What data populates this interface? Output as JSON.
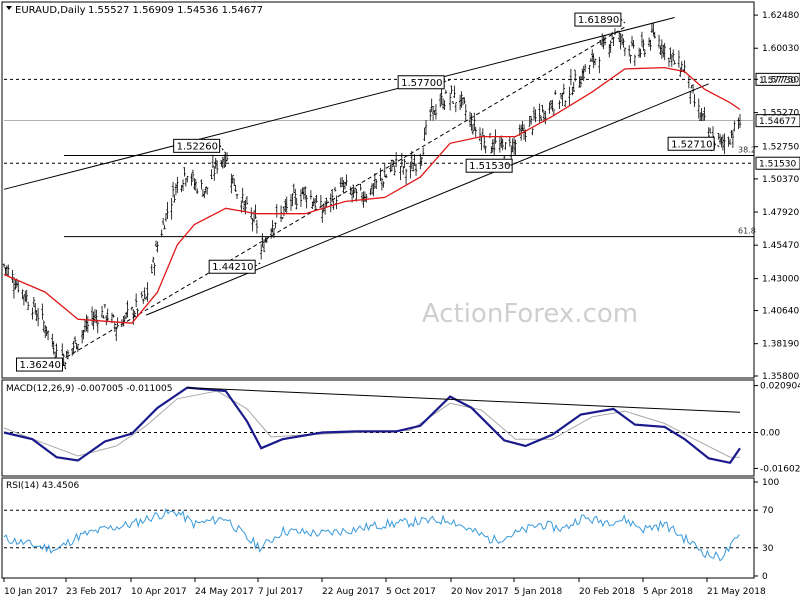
{
  "header": {
    "symbol_label": "EURAUD,Daily",
    "ohlc_label": "1.55527 1.56909 1.54536 1.54677"
  },
  "watermark": "ActionForex.com",
  "chart_data": {
    "type": "candlestick",
    "symbol": "EURAUD",
    "timeframe": "Daily",
    "last_close": 1.54677,
    "price_axis": {
      "ylim": [
        1.358,
        1.633
      ],
      "ticks": [
        "1.62480",
        "1.60030",
        "1.57730",
        "1.55270",
        "1.52750",
        "1.50370",
        "1.47920",
        "1.45470",
        "1.43000",
        "1.40640",
        "1.38190",
        "1.35800"
      ]
    },
    "date_axis": {
      "labels": [
        "10 Jan 2017",
        "23 Feb 2017",
        "10 Apr 2017",
        "24 May 2017",
        "7 Jul 2017",
        "22 Aug 2017",
        "5 Oct 2017",
        "20 Nov 2017",
        "5 Jan 2018",
        "20 Feb 2018",
        "5 Apr 2018",
        "21 May 2018"
      ]
    },
    "close_path": [
      [
        "2017-01-10",
        1.44
      ],
      [
        "2017-01-20",
        1.425
      ],
      [
        "2017-01-30",
        1.41
      ],
      [
        "2017-02-08",
        1.395
      ],
      [
        "2017-02-16",
        1.375
      ],
      [
        "2017-02-23",
        1.372
      ],
      [
        "2017-03-03",
        1.385
      ],
      [
        "2017-03-13",
        1.4
      ],
      [
        "2017-03-22",
        1.405
      ],
      [
        "2017-03-30",
        1.395
      ],
      [
        "2017-04-10",
        1.405
      ],
      [
        "2017-04-20",
        1.415
      ],
      [
        "2017-04-28",
        1.455
      ],
      [
        "2017-05-05",
        1.48
      ],
      [
        "2017-05-12",
        1.5
      ],
      [
        "2017-05-19",
        1.51
      ],
      [
        "2017-05-24",
        1.5
      ],
      [
        "2017-06-01",
        1.495
      ],
      [
        "2017-06-09",
        1.515
      ],
      [
        "2017-06-15",
        1.52
      ],
      [
        "2017-06-23",
        1.495
      ],
      [
        "2017-06-30",
        1.48
      ],
      [
        "2017-07-07",
        1.47
      ],
      [
        "2017-07-10",
        1.45
      ],
      [
        "2017-07-17",
        1.47
      ],
      [
        "2017-07-25",
        1.478
      ],
      [
        "2017-08-02",
        1.488
      ],
      [
        "2017-08-10",
        1.495
      ],
      [
        "2017-08-22",
        1.48
      ],
      [
        "2017-08-30",
        1.49
      ],
      [
        "2017-09-07",
        1.498
      ],
      [
        "2017-09-15",
        1.49
      ],
      [
        "2017-09-25",
        1.495
      ],
      [
        "2017-10-05",
        1.505
      ],
      [
        "2017-10-13",
        1.515
      ],
      [
        "2017-10-23",
        1.51
      ],
      [
        "2017-10-30",
        1.52
      ],
      [
        "2017-11-06",
        1.55
      ],
      [
        "2017-11-13",
        1.56
      ],
      [
        "2017-11-20",
        1.565
      ],
      [
        "2017-11-28",
        1.56
      ],
      [
        "2017-12-05",
        1.545
      ],
      [
        "2017-12-12",
        1.535
      ],
      [
        "2017-12-20",
        1.53
      ],
      [
        "2017-12-28",
        1.525
      ],
      [
        "2018-01-05",
        1.53
      ],
      [
        "2018-01-12",
        1.54
      ],
      [
        "2018-01-22",
        1.55
      ],
      [
        "2018-01-31",
        1.56
      ],
      [
        "2018-02-08",
        1.565
      ],
      [
        "2018-02-20",
        1.58
      ],
      [
        "2018-02-28",
        1.59
      ],
      [
        "2018-03-07",
        1.6
      ],
      [
        "2018-03-15",
        1.61
      ],
      [
        "2018-03-23",
        1.605
      ],
      [
        "2018-03-30",
        1.595
      ],
      [
        "2018-04-05",
        1.6
      ],
      [
        "2018-04-13",
        1.61
      ],
      [
        "2018-04-20",
        1.6
      ],
      [
        "2018-04-27",
        1.59
      ],
      [
        "2018-05-04",
        1.585
      ],
      [
        "2018-05-11",
        1.56
      ],
      [
        "2018-05-18",
        1.545
      ],
      [
        "2018-05-21",
        1.535
      ],
      [
        "2018-05-29",
        1.53
      ],
      [
        "2018-06-05",
        1.535
      ],
      [
        "2018-06-12",
        1.546
      ]
    ],
    "moving_average_path": [
      [
        "2017-01-10",
        1.433
      ],
      [
        "2017-02-08",
        1.42
      ],
      [
        "2017-03-03",
        1.4
      ],
      [
        "2017-04-10",
        1.397
      ],
      [
        "2017-04-28",
        1.42
      ],
      [
        "2017-05-12",
        1.455
      ],
      [
        "2017-05-24",
        1.47
      ],
      [
        "2017-06-15",
        1.482
      ],
      [
        "2017-07-07",
        1.478
      ],
      [
        "2017-08-10",
        1.478
      ],
      [
        "2017-09-07",
        1.487
      ],
      [
        "2017-10-05",
        1.49
      ],
      [
        "2017-10-30",
        1.505
      ],
      [
        "2017-11-20",
        1.53
      ],
      [
        "2017-12-12",
        1.535
      ],
      [
        "2018-01-05",
        1.535
      ],
      [
        "2018-01-31",
        1.55
      ],
      [
        "2018-02-28",
        1.568
      ],
      [
        "2018-03-23",
        1.585
      ],
      [
        "2018-04-20",
        1.586
      ],
      [
        "2018-05-04",
        1.583
      ],
      [
        "2018-05-18",
        1.57
      ],
      [
        "2018-06-05",
        1.56
      ],
      [
        "2018-06-12",
        1.555
      ]
    ],
    "channel_upper": [
      [
        "2017-01-10",
        1.496
      ],
      [
        "2018-04-27",
        1.623
      ]
    ],
    "channel_lower": [
      [
        "2017-04-20",
        1.403
      ],
      [
        "2018-05-21",
        1.574
      ]
    ],
    "inner_trend": [
      [
        "2017-02-23",
        1.372
      ],
      [
        "2018-03-23",
        1.616
      ]
    ],
    "levels": [
      {
        "label": "1.57730",
        "value": 1.5773,
        "style": "dashed"
      },
      {
        "label": "1.51530",
        "value": 1.5153,
        "style": "dashed"
      },
      {
        "label": "38.2",
        "value": 1.521,
        "style": "solid"
      },
      {
        "label": "61.8",
        "value": 1.461,
        "style": "solid"
      }
    ],
    "current_price_label": "1.54677",
    "swing_labels": [
      {
        "label": "1.36240",
        "date": "2017-02-23",
        "value": 1.3624
      },
      {
        "label": "1.44210",
        "date": "2017-07-10",
        "value": 1.4421
      },
      {
        "label": "1.52260",
        "date": "2017-06-15",
        "value": 1.5226
      },
      {
        "label": "1.57700",
        "date": "2017-11-20",
        "value": 1.577
      },
      {
        "label": "1.51530",
        "date": "2017-12-28",
        "value": 1.5153
      },
      {
        "label": "1.61890",
        "date": "2018-03-23",
        "value": 1.6189
      },
      {
        "label": "1.52710",
        "date": "2018-05-29",
        "value": 1.5271
      }
    ],
    "macd": {
      "header_label": "MACD(12,26,9) -0.007005 -0.011005",
      "ylim": [
        -0.0185,
        0.0225
      ],
      "ticks": [
        "0.020904",
        "0.00",
        "-0.016023"
      ],
      "macd_path": [
        [
          "2017-01-10",
          0.0
        ],
        [
          "2017-01-30",
          -0.003
        ],
        [
          "2017-02-16",
          -0.011
        ],
        [
          "2017-03-03",
          -0.0125
        ],
        [
          "2017-03-22",
          -0.004
        ],
        [
          "2017-04-10",
          -0.0005
        ],
        [
          "2017-04-28",
          0.011
        ],
        [
          "2017-05-19",
          0.02
        ],
        [
          "2017-06-15",
          0.0185
        ],
        [
          "2017-06-30",
          0.005
        ],
        [
          "2017-07-10",
          -0.007
        ],
        [
          "2017-07-25",
          -0.003
        ],
        [
          "2017-08-22",
          0.0
        ],
        [
          "2017-09-15",
          0.0005
        ],
        [
          "2017-10-13",
          0.0005
        ],
        [
          "2017-10-30",
          0.003
        ],
        [
          "2017-11-20",
          0.016
        ],
        [
          "2017-12-05",
          0.011
        ],
        [
          "2017-12-28",
          -0.0035
        ],
        [
          "2018-01-12",
          -0.006
        ],
        [
          "2018-01-31",
          -0.001
        ],
        [
          "2018-02-20",
          0.008
        ],
        [
          "2018-03-15",
          0.0105
        ],
        [
          "2018-03-30",
          0.0035
        ],
        [
          "2018-04-20",
          0.0025
        ],
        [
          "2018-05-04",
          -0.003
        ],
        [
          "2018-05-21",
          -0.0115
        ],
        [
          "2018-06-05",
          -0.0135
        ],
        [
          "2018-06-12",
          -0.007
        ]
      ],
      "signal_path": [
        [
          "2017-01-10",
          0.002
        ],
        [
          "2017-02-08",
          -0.005
        ],
        [
          "2017-03-03",
          -0.0105
        ],
        [
          "2017-03-30",
          -0.006
        ],
        [
          "2017-04-20",
          0.003
        ],
        [
          "2017-05-12",
          0.015
        ],
        [
          "2017-06-09",
          0.0185
        ],
        [
          "2017-06-30",
          0.0105
        ],
        [
          "2017-07-17",
          -0.002
        ],
        [
          "2017-08-10",
          -0.001
        ],
        [
          "2017-09-15",
          0.0
        ],
        [
          "2017-10-23",
          0.001
        ],
        [
          "2017-11-20",
          0.013
        ],
        [
          "2017-12-12",
          0.01
        ],
        [
          "2018-01-05",
          -0.003
        ],
        [
          "2018-01-31",
          -0.003
        ],
        [
          "2018-02-28",
          0.007
        ],
        [
          "2018-03-23",
          0.0095
        ],
        [
          "2018-04-20",
          0.004
        ],
        [
          "2018-05-11",
          -0.003
        ],
        [
          "2018-06-05",
          -0.011
        ],
        [
          "2018-06-12",
          -0.011
        ]
      ],
      "divergence_line": [
        [
          "2017-05-19",
          0.02
        ],
        [
          "2018-06-12",
          0.009
        ]
      ]
    },
    "rsi": {
      "header_label": "RSI(14) 43.4506",
      "ylim": [
        0,
        100
      ],
      "ticks": [
        "100",
        "70",
        "30",
        "0"
      ],
      "levels": [
        70,
        30
      ],
      "path": [
        [
          "2017-01-10",
          40
        ],
        [
          "2017-01-30",
          33
        ],
        [
          "2017-02-16",
          28
        ],
        [
          "2017-03-03",
          42
        ],
        [
          "2017-03-22",
          50
        ],
        [
          "2017-04-10",
          55
        ],
        [
          "2017-04-28",
          65
        ],
        [
          "2017-05-12",
          68
        ],
        [
          "2017-05-24",
          55
        ],
        [
          "2017-06-15",
          62
        ],
        [
          "2017-06-30",
          40
        ],
        [
          "2017-07-10",
          30
        ],
        [
          "2017-07-25",
          48
        ],
        [
          "2017-08-22",
          45
        ],
        [
          "2017-09-15",
          50
        ],
        [
          "2017-10-05",
          55
        ],
        [
          "2017-10-30",
          58
        ],
        [
          "2017-11-20",
          60
        ],
        [
          "2017-12-05",
          48
        ],
        [
          "2017-12-20",
          38
        ],
        [
          "2018-01-05",
          45
        ],
        [
          "2018-01-22",
          55
        ],
        [
          "2018-02-08",
          50
        ],
        [
          "2018-02-20",
          62
        ],
        [
          "2018-03-07",
          58
        ],
        [
          "2018-03-23",
          60
        ],
        [
          "2018-04-05",
          50
        ],
        [
          "2018-04-20",
          55
        ],
        [
          "2018-05-04",
          40
        ],
        [
          "2018-05-21",
          22
        ],
        [
          "2018-05-29",
          20
        ],
        [
          "2018-06-05",
          30
        ],
        [
          "2018-06-12",
          43
        ]
      ]
    }
  }
}
